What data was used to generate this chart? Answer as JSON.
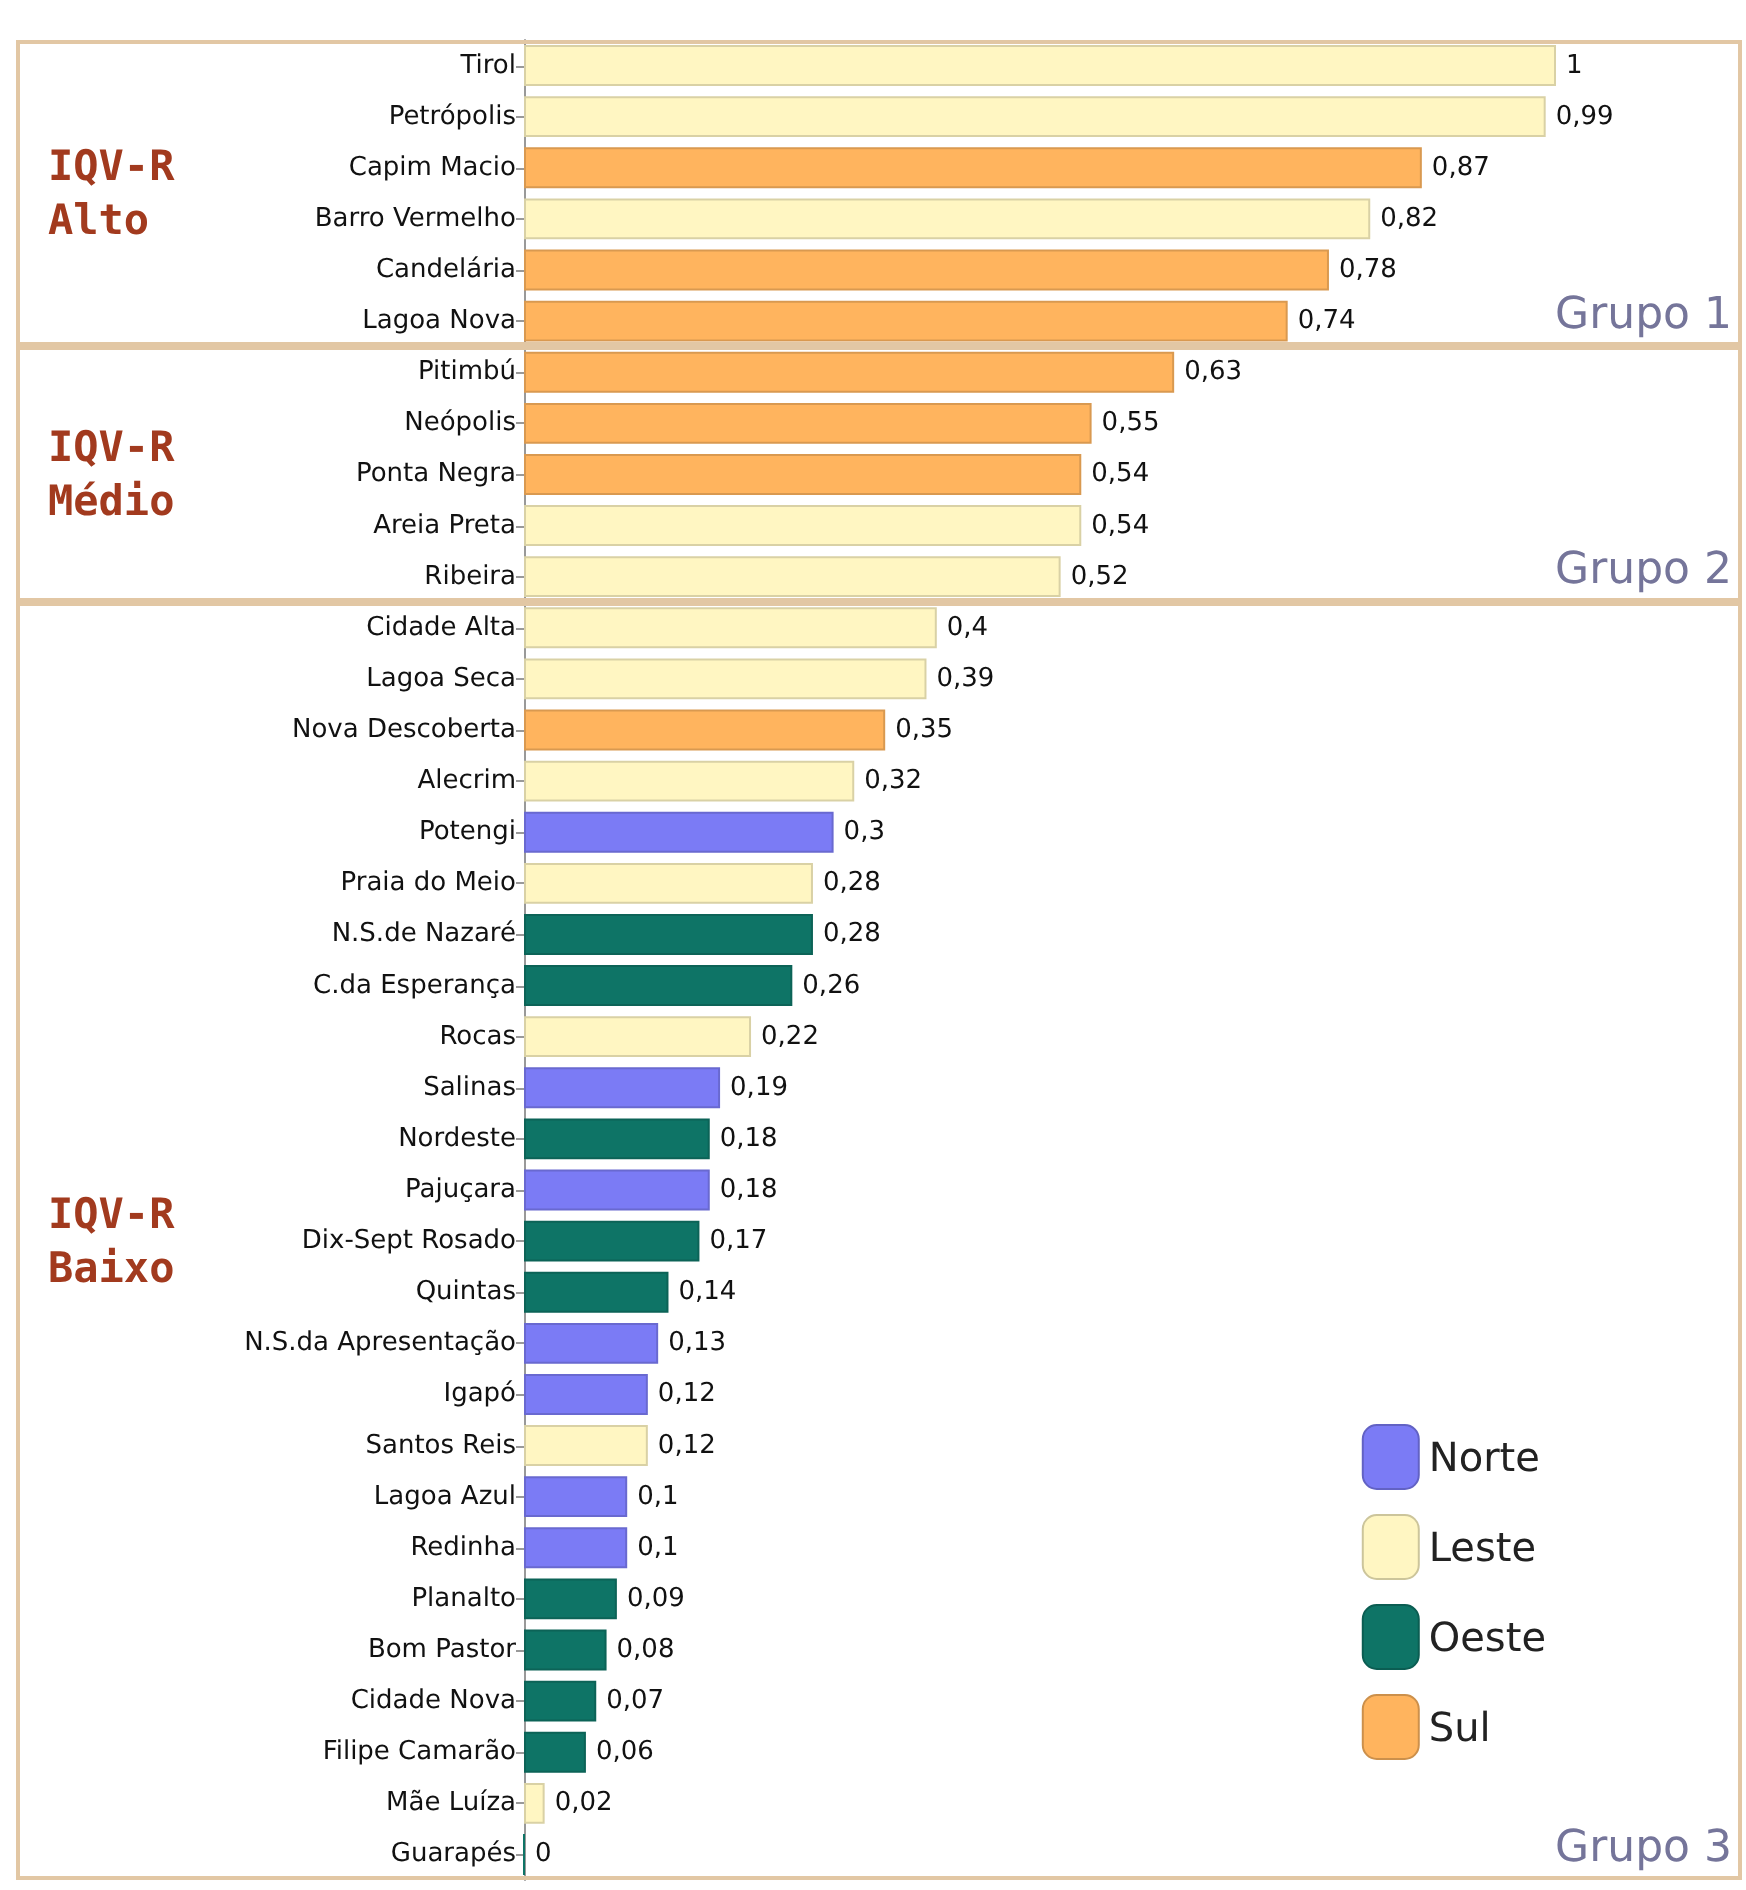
{
  "chart_data": {
    "type": "bar",
    "orientation": "horizontal",
    "stacked": true,
    "legend": "bottom right",
    "categories": [
      "Tirol",
      "Petrópolis",
      "Capim Macio",
      "Barro Vermelho",
      "Candelária",
      "Lagoa Nova",
      "Pitimbú",
      "Neópolis",
      "Ponta Negra",
      "Areia Preta",
      "Ribeira",
      "Cidade Alta",
      "Lagoa Seca",
      "Nova Descoberta",
      "Alecrim",
      "Potengi",
      "Praia do Meio",
      "N.S.de Nazaré",
      "C.da Esperança",
      "Rocas",
      "Salinas",
      "Nordeste",
      "Pajuçara",
      "Dix-Sept Rosado",
      "Quintas",
      "N.S.da Apresentação",
      "Igapó",
      "Santos Reis",
      "Lagoa Azul",
      "Redinha",
      "Planalto",
      "Bom Pastor",
      "Cidade Nova",
      "Filipe Camarão",
      "Mãe Luíza",
      "Guarapés"
    ],
    "series": [
      {
        "name": "Norte",
        "color": "#7b7bf5",
        "values": [
          null,
          null,
          null,
          null,
          null,
          null,
          null,
          null,
          null,
          null,
          null,
          null,
          null,
          null,
          null,
          0.3,
          null,
          null,
          null,
          null,
          0.19,
          null,
          0.18,
          null,
          null,
          0.13,
          0.12,
          null,
          0.1,
          0.1,
          null,
          null,
          null,
          null,
          null,
          null
        ],
        "value_labels": [
          null,
          null,
          null,
          null,
          null,
          null,
          null,
          null,
          null,
          null,
          null,
          null,
          null,
          null,
          null,
          "0,3",
          null,
          null,
          null,
          null,
          "0,19",
          null,
          "0,18",
          null,
          null,
          "0,13",
          "0,12",
          null,
          "0,1",
          "0,1",
          null,
          null,
          null,
          null,
          null,
          null
        ]
      },
      {
        "name": "Leste",
        "color": "#fff6c2",
        "values": [
          1,
          0.99,
          null,
          0.82,
          null,
          null,
          null,
          null,
          null,
          0.54,
          0.52,
          0.4,
          0.39,
          null,
          0.32,
          null,
          0.28,
          null,
          null,
          0.22,
          null,
          null,
          null,
          null,
          null,
          null,
          null,
          0.12,
          null,
          null,
          null,
          null,
          null,
          null,
          0.02,
          null
        ],
        "value_labels": [
          "1",
          "0,99",
          null,
          "0,82",
          null,
          null,
          null,
          null,
          null,
          "0,54",
          "0,52",
          "0,4",
          "0,39",
          null,
          "0,32",
          null,
          "0,28",
          null,
          null,
          "0,22",
          null,
          null,
          null,
          null,
          null,
          null,
          null,
          "0,12",
          null,
          null,
          null,
          null,
          null,
          null,
          "0,02",
          null
        ]
      },
      {
        "name": "Oeste",
        "color": "#0e7466",
        "values": [
          null,
          null,
          null,
          null,
          null,
          null,
          null,
          null,
          null,
          null,
          null,
          null,
          null,
          null,
          null,
          null,
          null,
          0.28,
          0.26,
          null,
          null,
          0.18,
          null,
          0.17,
          0.14,
          null,
          null,
          null,
          null,
          null,
          0.09,
          0.08,
          0.07,
          0.06,
          null,
          0
        ],
        "value_labels": [
          null,
          null,
          null,
          null,
          null,
          null,
          null,
          null,
          null,
          null,
          null,
          null,
          null,
          null,
          null,
          null,
          null,
          "0,28",
          "0,26",
          null,
          null,
          "0,18",
          null,
          "0,17",
          "0,14",
          null,
          null,
          null,
          null,
          null,
          "0,09",
          "0,08",
          "0,07",
          "0,06",
          null,
          "0"
        ]
      },
      {
        "name": "Sul",
        "color": "#ffb45e",
        "values": [
          null,
          null,
          0.87,
          null,
          0.78,
          0.74,
          0.63,
          0.55,
          0.54,
          null,
          null,
          null,
          null,
          0.35,
          null,
          null,
          null,
          null,
          null,
          null,
          null,
          null,
          null,
          null,
          null,
          null,
          null,
          null,
          null,
          null,
          null,
          null,
          null,
          null,
          null,
          null
        ],
        "value_labels": [
          null,
          null,
          "0,87",
          null,
          "0,78",
          "0,74",
          "0,63",
          "0,55",
          "0,54",
          null,
          null,
          null,
          null,
          "0,35",
          null,
          null,
          null,
          null,
          null,
          null,
          null,
          null,
          null,
          null,
          null,
          null,
          null,
          null,
          null,
          null,
          null,
          null,
          null,
          null,
          null,
          null
        ]
      }
    ],
    "annotations": [
      "IQV-R Alto",
      "IQV-R Médio",
      "IQV-R Baixo",
      "Grupo 1",
      "Grupo 2",
      "Grupo 3"
    ]
  }
}
